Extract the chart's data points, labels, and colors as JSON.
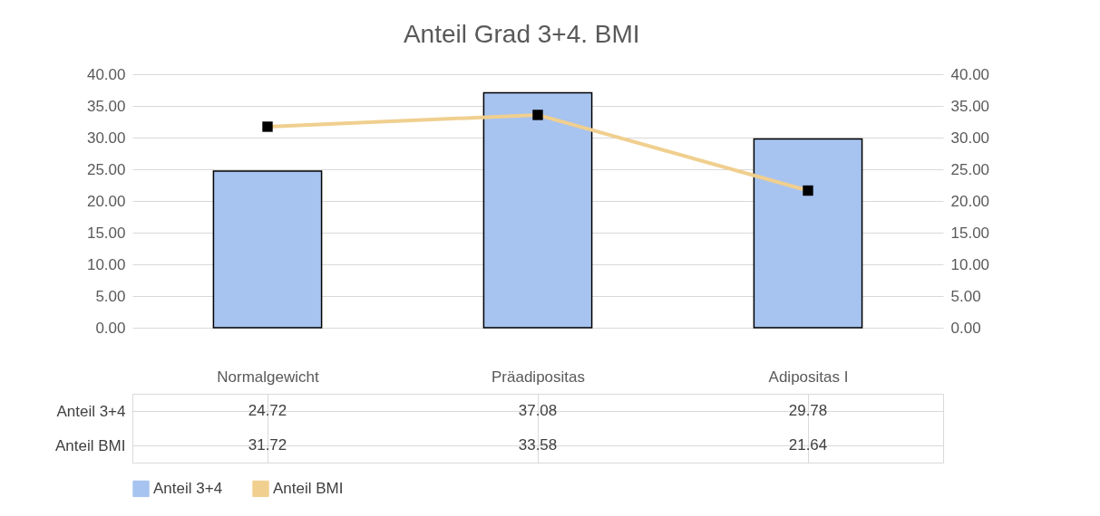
{
  "chart_data": {
    "type": "bar",
    "title": "Anteil Grad 3+4. BMI",
    "categories": [
      "Normalgewicht",
      "Präadipositas",
      "Adipositas I"
    ],
    "series": [
      {
        "name": "Anteil 3+4",
        "color": "#a7c3ef",
        "values": [
          24.72,
          37.08,
          29.78
        ]
      },
      {
        "name": "Anteil BMI",
        "type": "line",
        "axis": "y2",
        "color": "#f0cf8f",
        "marker": "square",
        "values": [
          31.72,
          33.58,
          21.64
        ]
      }
    ],
    "ylim": [
      0,
      40
    ],
    "yticks": [
      {
        "value": 0,
        "label": "0.00"
      },
      {
        "value": 5,
        "label": "5.00"
      },
      {
        "value": 10,
        "label": "10.00"
      },
      {
        "value": 15,
        "label": "15.00"
      },
      {
        "value": 20,
        "label": "20.00"
      },
      {
        "value": 25,
        "label": "25.00"
      },
      {
        "value": 30,
        "label": "30.00"
      },
      {
        "value": 35,
        "label": "35.00"
      },
      {
        "value": 40,
        "label": "40.00"
      }
    ],
    "y2lim": [
      0,
      40
    ],
    "y2ticks": [
      {
        "value": 0,
        "label": "0.00"
      },
      {
        "value": 5,
        "label": "5.00"
      },
      {
        "value": 10,
        "label": "10.00"
      },
      {
        "value": 15,
        "label": "15.00"
      },
      {
        "value": 20,
        "label": "20.00"
      },
      {
        "value": 25,
        "label": "25.00"
      },
      {
        "value": 30,
        "label": "30.00"
      },
      {
        "value": 35,
        "label": "35.00"
      },
      {
        "value": 40,
        "label": "40.00"
      }
    ],
    "grid": "y",
    "legend": "bottom",
    "data_labels": true
  }
}
